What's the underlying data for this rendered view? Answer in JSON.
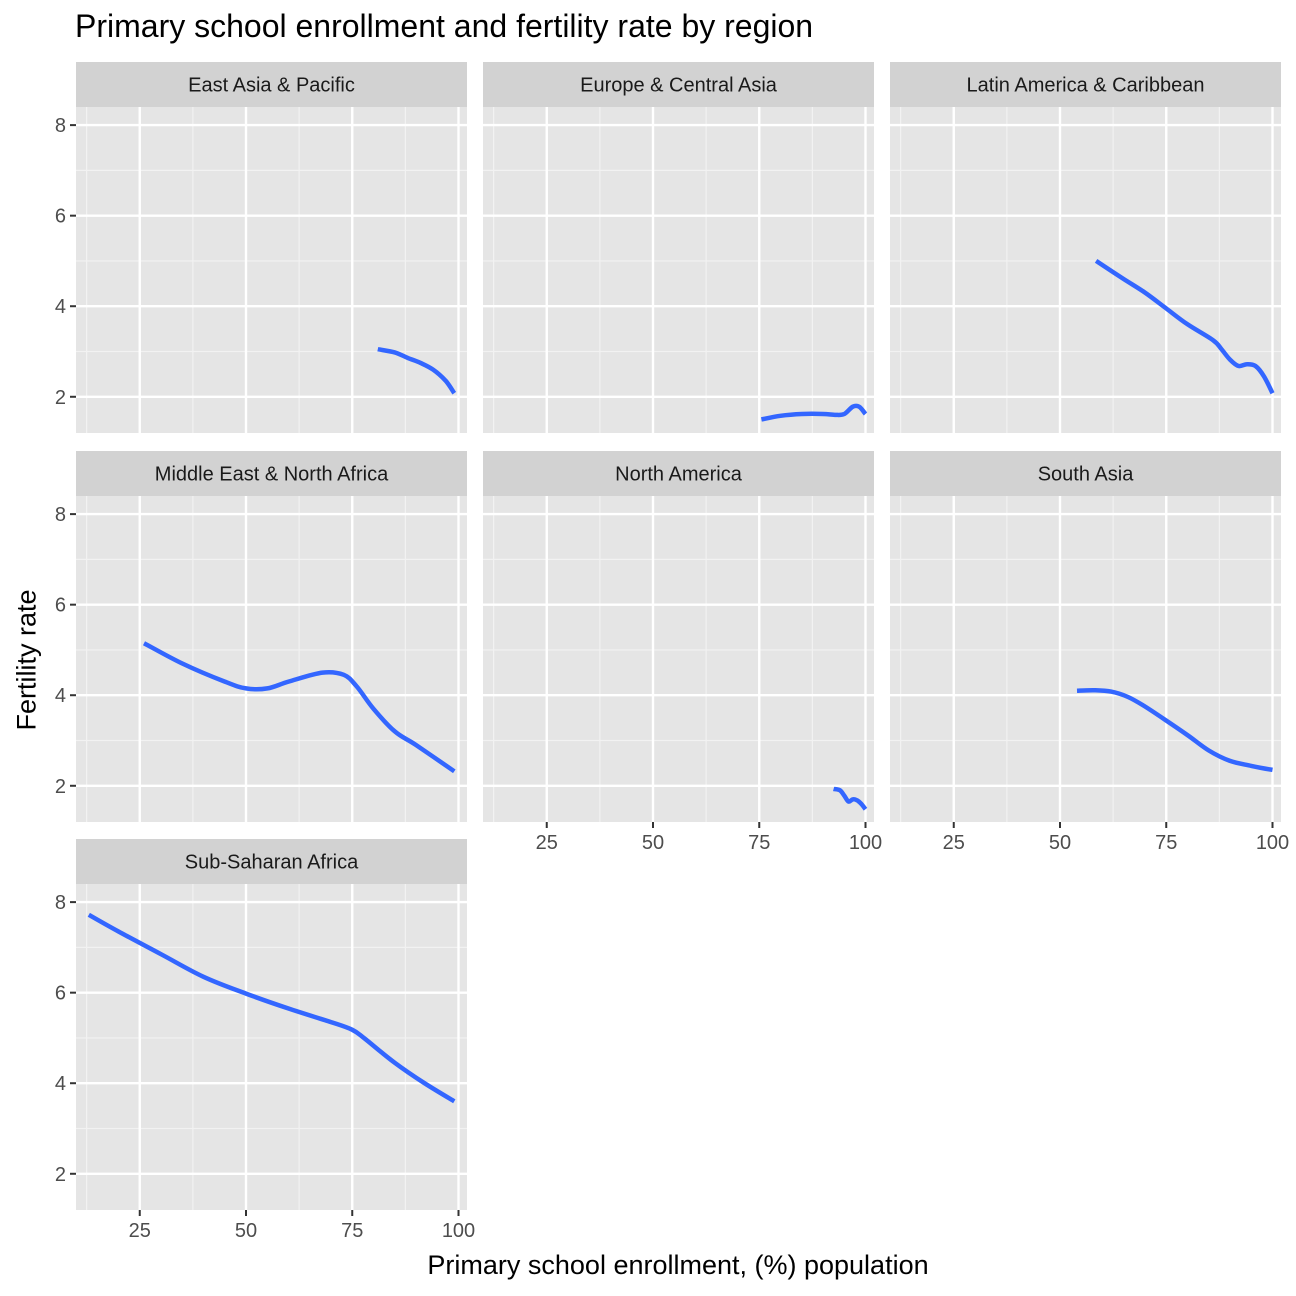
{
  "chart_data": {
    "type": "line",
    "title": "Primary school enrollment and fertility rate by region",
    "xlabel": "Primary school enrollment, (%) population",
    "ylabel": "Fertility rate",
    "xlim": [
      10,
      102
    ],
    "ylim": [
      1.2,
      8.4
    ],
    "x_ticks": [
      25,
      50,
      75,
      100
    ],
    "y_ticks": [
      2,
      4,
      6,
      8
    ],
    "grid": true,
    "line_color": "#3366FF",
    "panel_background": "#E5E5E5",
    "strip_background": "#D2D2D2",
    "panels": [
      {
        "name": "East Asia & Pacific",
        "x": [
          81,
          85,
          88,
          91,
          94,
          97,
          99
        ],
        "y": [
          3.05,
          2.98,
          2.86,
          2.75,
          2.6,
          2.35,
          2.08
        ]
      },
      {
        "name": "Europe & Central Asia",
        "x": [
          75.5,
          80,
          85,
          90,
          93,
          95,
          97,
          98.5,
          100
        ],
        "y": [
          1.5,
          1.58,
          1.62,
          1.62,
          1.6,
          1.62,
          1.78,
          1.78,
          1.62
        ]
      },
      {
        "name": "Latin America & Caribbean",
        "x": [
          58.5,
          65,
          70,
          75,
          80,
          86,
          88,
          90,
          92,
          94,
          96,
          98,
          100
        ],
        "y": [
          5.0,
          4.6,
          4.3,
          3.95,
          3.6,
          3.25,
          3.05,
          2.82,
          2.68,
          2.72,
          2.68,
          2.45,
          2.08
        ]
      },
      {
        "name": "Middle East & North Africa",
        "x": [
          26,
          35,
          45,
          50,
          55,
          60,
          68,
          73,
          76,
          80,
          85,
          90,
          99
        ],
        "y": [
          5.15,
          4.7,
          4.3,
          4.15,
          4.15,
          4.3,
          4.5,
          4.45,
          4.2,
          3.7,
          3.2,
          2.9,
          2.32
        ]
      },
      {
        "name": "North America",
        "x": [
          92.5,
          94,
          95,
          96,
          97,
          98,
          99,
          100
        ],
        "y": [
          1.93,
          1.9,
          1.78,
          1.65,
          1.7,
          1.68,
          1.6,
          1.48
        ]
      },
      {
        "name": "South Asia",
        "x": [
          54,
          58,
          62,
          66,
          70,
          75,
          80,
          85,
          90,
          95,
          100
        ],
        "y": [
          4.1,
          4.11,
          4.08,
          3.96,
          3.75,
          3.44,
          3.12,
          2.78,
          2.55,
          2.44,
          2.35
        ]
      },
      {
        "name": "Sub-Saharan Africa",
        "x": [
          13,
          20,
          30,
          40,
          50,
          60,
          70,
          75,
          78,
          85,
          92,
          99
        ],
        "y": [
          7.72,
          7.35,
          6.85,
          6.35,
          5.98,
          5.65,
          5.35,
          5.18,
          4.98,
          4.45,
          4.0,
          3.6
        ]
      }
    ]
  }
}
